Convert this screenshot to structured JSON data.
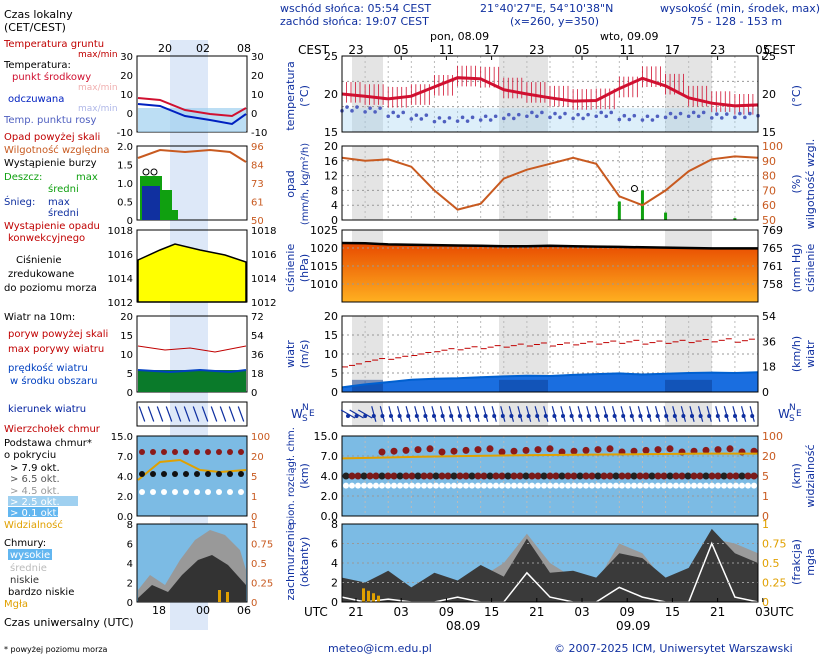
{
  "header": {
    "sunrise": "wschód słońca: 05:54 CEST",
    "sunset": "zachód słońca: 19:07 CEST",
    "coords": "21°40'27\"E, 54°10'38\"N",
    "grid": "(x=260,  y=350)",
    "elev_label": "wysokość (min, środek, max)",
    "elev_values": "75 - 128 - 153 m",
    "day1": "pon, 08.09",
    "day2": "wto, 09.09"
  },
  "time": {
    "cest_label": "CEST",
    "cest_ticks": [
      "23",
      "05",
      "11",
      "17",
      "23",
      "05",
      "11",
      "17",
      "23",
      "05"
    ],
    "utc_label": "UTC",
    "utc_ticks": [
      "21",
      "03",
      "09",
      "15",
      "21",
      "03",
      "09",
      "15",
      "21",
      "03"
    ],
    "utc_dates": [
      "08.09",
      "09.09"
    ],
    "mini_top_ticks": [
      "20",
      "02",
      "08"
    ],
    "mini_bottom_ticks": [
      "18",
      "00",
      "06"
    ]
  },
  "legend": {
    "time_local": "Czas lokalny",
    "time_local2": "(CET/CEST)",
    "soil_temp": "Temperatura gruntu",
    "max_min": "max/min",
    "temperature": "Temperatura:",
    "mid_point": "punkt środkowy",
    "max_min_faded": "max/min",
    "perceived": "odczuwana",
    "max_min_faded2": "max/min",
    "dew_point": "Temp. punktu rosy",
    "precip_above": "Opad powyżej skali",
    "rel_hum": "Wilgotność względna",
    "storm": "Wystąpienie burzy",
    "rain": "Deszcz:",
    "rain_max": "max",
    "rain_mid": "średni",
    "snow": "Śnieg:",
    "snow_max": "max",
    "snow_mid": "średni",
    "conv": "Wystąpienie opadu",
    "conv2": "konwekcyjnego",
    "pressure1": "Ciśnienie",
    "pressure2": "zredukowane",
    "pressure3": "do poziomu morza",
    "wind10": "Wiatr na 10m:",
    "gust_above": "poryw powyżej skali",
    "gust_max": "max porywy wiatru",
    "wind_speed": "prędkość wiatru",
    "wind_area": "w środku obszaru",
    "wind_dir": "kierunek wiatru",
    "cloud_top": "Wierzchołek chmur",
    "cloud_base": "Podstawa chmur*",
    "cloud_cover": "o pokryciu",
    "okt79": "> 7.9 okt.",
    "okt65": "> 6.5 okt.",
    "okt45": "> 4.5 okt.",
    "okt25": "> 2.5 okt.",
    "okt01": "> 0.1 okt.",
    "visibility": "Widzialność",
    "clouds": "Chmury:",
    "high": "wysokie",
    "middle": "średnie",
    "low": "niskie",
    "very_low": "bardzo niskie",
    "fog": "Mgła",
    "utc_time": "Czas uniwersalny (UTC)",
    "footnote": "* powyżej poziomu morza"
  },
  "ylabels": {
    "temp": "temperatura",
    "temp_unit": "(°C)",
    "precip": "opad",
    "precip_unit": "(mm/h, kg/m²/h)",
    "hum_unit": "(%)",
    "hum": "wilgotność wzgl.",
    "press": "ciśnienie",
    "press_unit": "(hPa)",
    "mmhg": "(mm Hg)",
    "press_r": "ciśnienie",
    "wind": "wiatr",
    "ms": "(m/s)",
    "kmh": "(km/h)",
    "cloudbase": "pion. rozciągł. chm.",
    "km": "(km)",
    "km_r": "(km)",
    "vis": "widzialność",
    "cover": "zachmurzenie",
    "oktants": "(oktanty)",
    "fraction": "(frakcja)",
    "fog": "mgła"
  },
  "footer": {
    "email": "meteo@icm.edu.pl",
    "copyright": "© 2007-2025 ICM, Uniwersytet Warszawski"
  },
  "colors": {
    "temp": "#d01030",
    "dew": "#5060c0",
    "humidity": "#c85a20",
    "pressure_top": "#e84a00",
    "pressure_bottom": "#ffb020",
    "wind": "#0060d0",
    "gust": "#c00000",
    "cloud_panel": "#7cbbe4",
    "visibility": "#e0a000"
  },
  "chart_data": [
    {
      "type": "line",
      "title": "temperatura",
      "ylabel": "(°C)",
      "ylim": [
        12,
        26
      ],
      "x": [
        "23",
        "02",
        "05",
        "08",
        "11",
        "14",
        "17",
        "20",
        "23",
        "02",
        "05",
        "08",
        "11",
        "14",
        "17",
        "20",
        "23",
        "02",
        "05"
      ],
      "series": [
        {
          "name": "punkt środkowy",
          "values": [
            19,
            18.6,
            18.1,
            18.6,
            20.3,
            22.0,
            21.8,
            19.8,
            19.0,
            18.3,
            17.7,
            17.8,
            20.0,
            21.9,
            20.5,
            18.3,
            17.3,
            16.8,
            17.0
          ]
        },
        {
          "name": "Temp. punktu rosy",
          "values": [
            16.2,
            16.0,
            15.2,
            14.7,
            14.2,
            14.3,
            14.5,
            14.8,
            15.2,
            15.0,
            14.8,
            15.2,
            14.6,
            14.5,
            15.0,
            15.2,
            14.9,
            15.0,
            15.3
          ]
        }
      ]
    },
    {
      "type": "line",
      "title": "opad / wilgotność wzgl.",
      "ylabel": "(mm/h, kg/m²/h)",
      "ylim": [
        0,
        20
      ],
      "y2lim": [
        50,
        100
      ],
      "x": [
        "23",
        "02",
        "05",
        "08",
        "11",
        "14",
        "17",
        "20",
        "23",
        "02",
        "05",
        "08",
        "11",
        "14",
        "17",
        "20",
        "23",
        "02",
        "05"
      ],
      "series": [
        {
          "name": "Wilgotność względna",
          "values": [
            92,
            90,
            91,
            86,
            70,
            57,
            61,
            78,
            84,
            88,
            92,
            88,
            66,
            60,
            70,
            83,
            91,
            93,
            92
          ]
        },
        {
          "name": "Deszcz",
          "values": [
            0,
            0,
            0,
            0,
            0,
            0,
            0,
            0,
            0,
            0,
            0,
            0,
            5,
            8,
            2,
            0,
            0,
            0.5,
            0
          ]
        }
      ]
    },
    {
      "type": "area",
      "title": "ciśnienie",
      "ylabel": "(hPa)",
      "ylim": [
        1005,
        1025
      ],
      "y2ticks": [
        "769",
        "765",
        "761",
        "758"
      ],
      "x": [
        "23",
        "02",
        "05",
        "08",
        "11",
        "14",
        "17",
        "20",
        "23",
        "02",
        "05",
        "08",
        "11",
        "14",
        "17",
        "20",
        "23",
        "02",
        "05"
      ],
      "values": [
        1021.4,
        1021.3,
        1021.0,
        1020.9,
        1020.8,
        1020.7,
        1020.6,
        1020.5,
        1020.5,
        1020.6,
        1020.5,
        1020.4,
        1020.3,
        1020.2,
        1020.1,
        1020.0,
        1019.9,
        1019.9,
        1019.9
      ]
    },
    {
      "type": "area",
      "title": "wiatr",
      "ylabel": "(m/s)",
      "ylim": [
        0,
        20
      ],
      "y2ticks": [
        "54",
        "36",
        "18",
        "0"
      ],
      "x": [
        "23",
        "02",
        "05",
        "08",
        "11",
        "14",
        "17",
        "20",
        "23",
        "02",
        "05",
        "08",
        "11",
        "14",
        "17",
        "20",
        "23",
        "02",
        "05"
      ],
      "series": [
        {
          "name": "prędkość wiatru",
          "values": [
            1.2,
            2.0,
            2.6,
            3.2,
            3.5,
            3.6,
            3.9,
            4.1,
            4.3,
            4.2,
            4.5,
            4.7,
            4.9,
            4.6,
            4.8,
            5.0,
            5.1,
            5.0,
            5.2
          ]
        },
        {
          "name": "max porywy wiatru",
          "values": [
            7.0,
            8.4,
            9.0,
            10.0,
            11.0,
            11.5,
            11.8,
            12.2,
            12.5,
            12.5,
            12.8,
            13.0,
            13.2,
            13.0,
            13.2,
            13.4,
            13.6,
            13.5,
            13.9
          ]
        }
      ]
    },
    {
      "type": "scatter",
      "title": "pion. rozciągł. chm. / widzialność",
      "ylabel": "(km)",
      "ylim": [
        0,
        15
      ],
      "yticks": [
        "15.0",
        "7.0",
        "4.0",
        "2.0",
        "0.0"
      ],
      "y2ticks": [
        "100",
        "20",
        "5",
        "1",
        "0"
      ],
      "x": [
        "23",
        "02",
        "05",
        "08",
        "11",
        "14",
        "17",
        "20",
        "23",
        "02",
        "05",
        "08",
        "11",
        "14",
        "17",
        "20",
        "23",
        "02",
        "05"
      ],
      "series": [
        {
          "name": "Podstawa chmur > 7.9 okt.",
          "values": [
            2.0,
            2.0,
            2.0,
            2.0,
            2.0,
            2.0,
            2.0,
            2.0,
            2.0,
            2.0,
            2.0,
            2.0,
            2.0,
            2.0,
            2.0,
            2.0,
            2.0,
            2.0,
            2.0
          ]
        },
        {
          "name": "Wierzchołek chmur",
          "values": [
            2.3,
            3.0,
            3.1,
            3.3,
            6.0,
            6.2,
            6.4,
            6.6,
            6.7,
            6.8,
            6.7,
            6.7,
            6.7,
            6.8,
            6.9,
            6.9,
            7.0,
            7.0,
            7.0
          ]
        },
        {
          "name": "Widzialność",
          "values": [
            20,
            20,
            20,
            20,
            20,
            20,
            20,
            20,
            20,
            20,
            20,
            20,
            20,
            20,
            20,
            20,
            20,
            20,
            20
          ]
        }
      ]
    },
    {
      "type": "area",
      "title": "zachmurzenie",
      "ylabel": "(oktanty)",
      "ylim": [
        0,
        8
      ],
      "yticks": [
        "8",
        "6",
        "4",
        "2",
        "0"
      ],
      "y2ticks": [
        "1",
        "0.75",
        "0.5",
        "0.25",
        "0"
      ],
      "x": [
        "23",
        "02",
        "05",
        "08",
        "11",
        "14",
        "17",
        "20",
        "23",
        "02",
        "05",
        "08",
        "11",
        "14",
        "17",
        "20",
        "23",
        "02",
        "05"
      ],
      "series": [
        {
          "name": "niskie",
          "values": [
            2.5,
            2.0,
            3.2,
            1.5,
            3.0,
            2.2,
            3.8,
            2.6,
            6.5,
            3.0,
            3.2,
            2.5,
            5.0,
            4.5,
            2.5,
            3.5,
            7.5,
            5.0,
            4.0
          ]
        },
        {
          "name": "średnie",
          "values": [
            2.0,
            1.5,
            2.0,
            1.0,
            2.0,
            1.0,
            2.5,
            4.0,
            7.0,
            4.0,
            2.5,
            2.0,
            6.0,
            5.0,
            2.0,
            3.0,
            6.5,
            6.0,
            5.0
          ]
        },
        {
          "name": "wysokie",
          "values": [
            0.5,
            0,
            0.3,
            0,
            0,
            0.5,
            0,
            0,
            3.0,
            0.5,
            0,
            0,
            1.5,
            0.5,
            0,
            0,
            6.0,
            0.5,
            0
          ]
        },
        {
          "name": "Mgła",
          "values": [
            0.2,
            0.1,
            0,
            0,
            0,
            0,
            0,
            0,
            0,
            0,
            0,
            0,
            0,
            0,
            0,
            0,
            0,
            0,
            0
          ]
        }
      ]
    }
  ]
}
